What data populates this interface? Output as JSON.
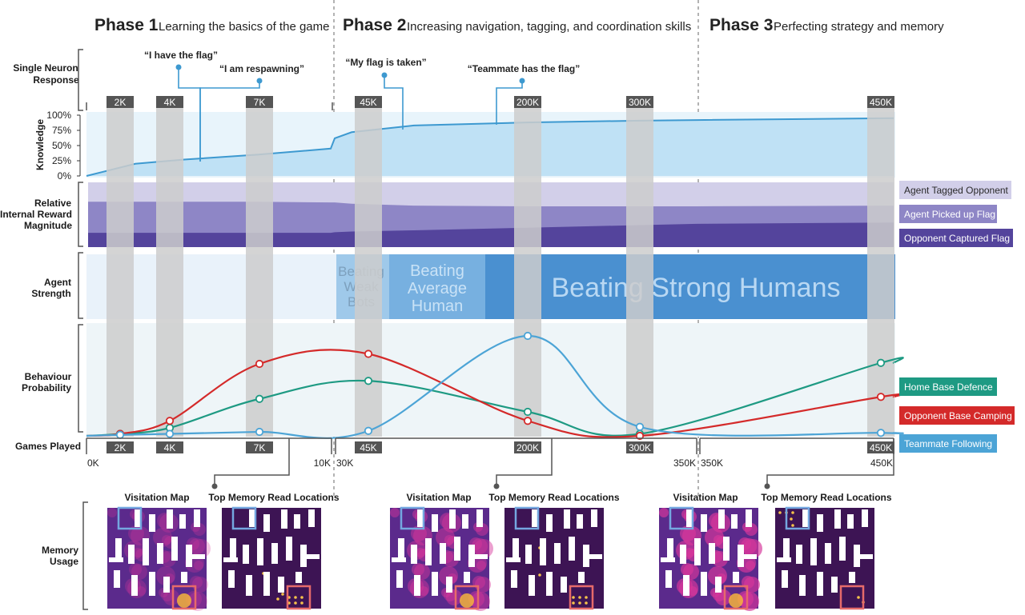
{
  "phases": [
    {
      "num": "Phase 1",
      "desc": "Learning the basics of the game"
    },
    {
      "num": "Phase 2",
      "desc": "Increasing navigation, tagging, and coordination skills"
    },
    {
      "num": "Phase 3",
      "desc": "Perfecting strategy and memory"
    }
  ],
  "row_labels": {
    "single_neuron": [
      "Single Neuron",
      "Response"
    ],
    "knowledge": "Knowledge",
    "reward": [
      "Relative",
      "Internal Reward",
      "Magnitude"
    ],
    "strength": [
      "Agent",
      "Strength"
    ],
    "behaviour": [
      "Behaviour",
      "Probability"
    ],
    "games_played": "Games Played",
    "memory": [
      "Memory",
      "Usage"
    ]
  },
  "neuron_quotes": [
    {
      "text": "“I have the flag”",
      "games": 5
    },
    {
      "text": "“I am respawning”",
      "games": 7
    },
    {
      "text": "“My flag is taken”",
      "games": 100
    },
    {
      "text": "“Teammate has the flag”",
      "games": 175
    }
  ],
  "checkpoints": [
    "2K",
    "4K",
    "7K",
    "45K",
    "200K",
    "300K",
    "450K"
  ],
  "axis_segments": [
    {
      "start": "0K",
      "end": "10K"
    },
    {
      "start": "30K",
      "end": "350K"
    },
    {
      "start": "350K",
      "end": "450K"
    }
  ],
  "chart_data": [
    {
      "type": "area",
      "title": "Knowledge",
      "ylabel": "Knowledge",
      "yticks": [
        "0%",
        "25%",
        "50%",
        "75%",
        "100%"
      ],
      "ylim": [
        0,
        100
      ],
      "x": [
        0,
        2,
        4,
        7,
        10,
        30,
        45,
        100,
        200,
        300,
        350,
        450
      ],
      "values": [
        0,
        20,
        27,
        35,
        45,
        62,
        72,
        83,
        88,
        91,
        92,
        95
      ]
    },
    {
      "type": "area",
      "title": "Relative Internal Reward Magnitude",
      "series": [
        {
          "name": "Opponent Captured Flag",
          "color": "#54449c",
          "values": [
            22,
            22,
            22,
            22,
            22,
            23,
            24,
            26,
            30,
            34,
            36,
            38
          ]
        },
        {
          "name": "Agent Picked up Flag",
          "color": "#8e86c6",
          "values": [
            70,
            70,
            70,
            70,
            69,
            69,
            67,
            64,
            63,
            63,
            63,
            64
          ]
        },
        {
          "name": "Agent Tagged Opponent",
          "color": "#d2cfe9",
          "values": [
            100,
            100,
            100,
            100,
            100,
            100,
            100,
            100,
            100,
            100,
            100,
            100
          ]
        }
      ],
      "x": [
        0,
        2,
        4,
        7,
        10,
        30,
        45,
        100,
        200,
        300,
        350,
        450
      ]
    },
    {
      "type": "bar",
      "title": "Agent Strength",
      "bands": [
        {
          "label": [
            "Beating",
            "Weak",
            "Bots"
          ],
          "color": "#9fc9ea",
          "text_color": "#7da0bd"
        },
        {
          "label": [
            "Beating",
            "Average",
            "Human"
          ],
          "color": "#77b0e0",
          "text_color": "#c9e2f6"
        },
        {
          "label": [
            "Beating Strong Humans"
          ],
          "color": "#4a90d0",
          "text_color": "#b9d8f3"
        }
      ]
    },
    {
      "type": "line",
      "title": "Behaviour Probability",
      "checkpoints": [
        "2K",
        "4K",
        "7K",
        "45K",
        "200K",
        "300K",
        "450K"
      ],
      "series": [
        {
          "name": "Home Base Defence",
          "color": "#1e9a83",
          "values": [
            0.02,
            0.08,
            0.37,
            0.55,
            0.24,
            0.02,
            0.73
          ]
        },
        {
          "name": "Opponent Base Camping",
          "color": "#d42a2a",
          "values": [
            0.02,
            0.15,
            0.72,
            0.82,
            0.15,
            0.0,
            0.39
          ]
        },
        {
          "name": "Teammate Following",
          "color": "#4ca4d6",
          "values": [
            0.01,
            0.02,
            0.04,
            0.05,
            1.0,
            0.09,
            0.03
          ]
        }
      ],
      "ylim": [
        0,
        1
      ]
    }
  ],
  "maps": [
    {
      "visitation_title": "Visitation Map",
      "memory_title": "Top Memory Read Locations"
    },
    {
      "visitation_title": "Visitation Map",
      "memory_title": "Top Memory Read Locations"
    },
    {
      "visitation_title": "Visitation Map",
      "memory_title": "Top Memory Read Locations"
    }
  ],
  "colors": {
    "knowledge_fill": "#bfe1f5",
    "knowledge_line": "#3d99d0",
    "checkpoint_bar": "#cccccc",
    "badge": "#555555",
    "map_bg": "#3d1454",
    "map_heat": "#d6379b"
  }
}
